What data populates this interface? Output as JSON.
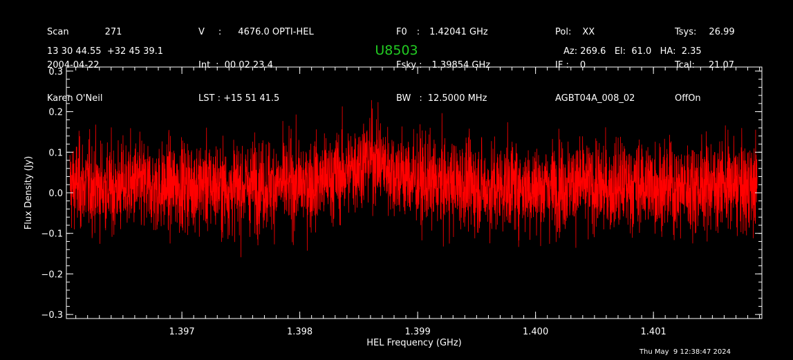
{
  "header": {
    "col1": {
      "scan_label": "Scan",
      "scan_value": "271",
      "date": "2004-04-22",
      "observer": "Karen O'Neil"
    },
    "col2": {
      "v_label": "V",
      "v_value": "4676.0 OPTI-HEL",
      "int_label": "Int",
      "int_value": "00 02 23.4",
      "lst_label": "LST",
      "lst_value": "+15 51 41.5"
    },
    "col3": {
      "f0_label": "F0",
      "f0_value": "1.42041 GHz",
      "fsky_label": "Fsky",
      "fsky_value": "1.39854 GHz",
      "bw_label": "BW",
      "bw_value": "12.5000 MHz"
    },
    "col4": {
      "pol_label": "Pol:",
      "pol_value": "XX",
      "if_label": "IF :",
      "if_value": "0",
      "project": "AGBT04A_008_02"
    },
    "col5": {
      "tsys_label": "Tsys:",
      "tsys_value": "26.99",
      "tcal_label": "Tcal:",
      "tcal_value": "21.07",
      "mode": "OffOn"
    },
    "coords": "13 30 44.55  +32 45 39.1",
    "source": "U8503",
    "pointing": "Az: 269.6   El:  61.0   HA:  2.35"
  },
  "timestamp": "Thu May  9 12:38:47 2024",
  "colors": {
    "trace": "#ff0000",
    "source": "#22cc22",
    "background": "#000000",
    "axes": "#ffffff"
  },
  "chart_data": {
    "type": "line",
    "xlabel": "HEL Frequency (GHz)",
    "ylabel": "Flux Density (Jy)",
    "xlim": [
      1.39602,
      1.40192
    ],
    "ylim": [
      -0.31,
      0.31
    ],
    "xticks": [
      1.397,
      1.398,
      1.399,
      1.4,
      1.401
    ],
    "xtick_labels": [
      "1.397",
      "1.398",
      "1.399",
      "1.400",
      "1.401"
    ],
    "yticks": [
      0.3,
      0.2,
      0.1,
      0.0,
      -0.1,
      -0.2,
      -0.3
    ],
    "ytick_labels": [
      "0.3",
      "0.2",
      "0.1",
      "0.0",
      "−0.1",
      "−0.2",
      "−0.3"
    ],
    "grid": false,
    "series": [
      {
        "color": "#ff0000",
        "x": [
          1.39605,
          1.3962,
          1.3964,
          1.3966,
          1.3968,
          1.397,
          1.3972,
          1.3974,
          1.3976,
          1.3978,
          1.398,
          1.3982,
          1.3983,
          1.3984,
          1.3985,
          1.39855,
          1.3986,
          1.39865,
          1.3987,
          1.3988,
          1.3989,
          1.399,
          1.3992,
          1.3994,
          1.3996,
          1.3998,
          1.4,
          1.4002,
          1.4004,
          1.4006,
          1.4008,
          1.401,
          1.4012,
          1.4014,
          1.4016,
          1.4018,
          1.40188
        ],
        "y": [
          0.02,
          0.02,
          0.01,
          0.02,
          0.01,
          0.02,
          0.02,
          0.01,
          0.02,
          0.02,
          0.02,
          0.03,
          0.04,
          0.05,
          0.07,
          0.08,
          0.09,
          0.08,
          0.07,
          0.05,
          0.04,
          0.03,
          0.02,
          0.02,
          0.01,
          0.02,
          0.01,
          0.02,
          0.02,
          0.01,
          0.02,
          0.02,
          0.01,
          0.02,
          0.02,
          0.01,
          0.02
        ],
        "noise_rms": 0.055,
        "peak_min": -0.23,
        "peak_max": 0.27
      }
    ]
  }
}
